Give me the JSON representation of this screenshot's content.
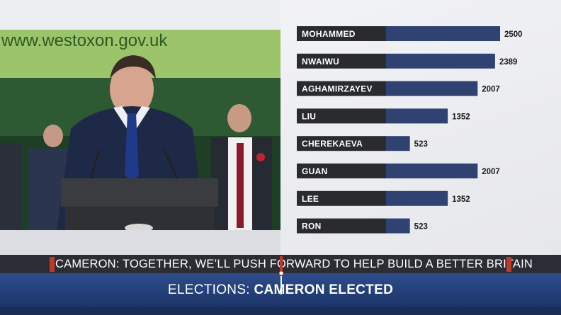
{
  "photo": {
    "backdrop_text": "www.westoxon.gov.uk"
  },
  "chart_data": {
    "type": "bar",
    "orientation": "horizontal",
    "categories": [
      "MOHAMMED",
      "NWAIWU",
      "AGHAMIRZAYEV",
      "LIU",
      "CHEREKAEVA",
      "GUAN",
      "LEE",
      "RON"
    ],
    "values": [
      2500,
      2389,
      2007,
      1352,
      523,
      2007,
      1352,
      523
    ],
    "xlim": [
      0,
      2500
    ],
    "title": "",
    "xlabel": "",
    "ylabel": "",
    "grid": false,
    "legend": "none",
    "colors": {
      "label_box": "#2a2b2e",
      "bar": "#2f4272",
      "value_text": "#1b1b1b"
    }
  },
  "ticker": {
    "text": "CAMERON: TOGETHER, WE’LL PUSH FORWARD TO HELP BUILD A BETTER BRITAIN",
    "accent_color": "#c0392b"
  },
  "banner": {
    "prefix": "ELECTIONS: ",
    "headline": "CAMERON ELECTED",
    "color": "#2a4684"
  }
}
